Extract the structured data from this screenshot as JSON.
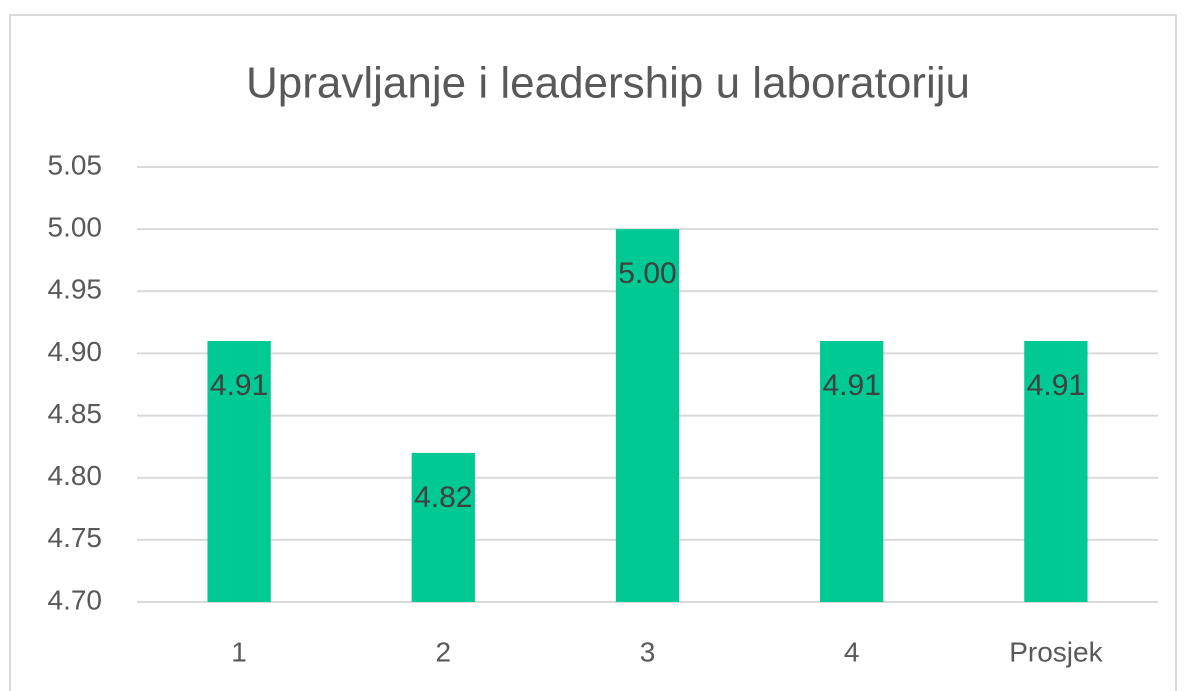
{
  "chart_data": {
    "type": "bar",
    "title": "Upravljanje i leadership u laboratoriju",
    "categories": [
      "1",
      "2",
      "3",
      "4",
      "Prosjek"
    ],
    "values": [
      4.91,
      4.82,
      5,
      4.91,
      4.91
    ],
    "value_labels": [
      "4.91",
      "4.82",
      "5.00",
      "4.91",
      "4.91"
    ],
    "color": "#00c994",
    "ylim": [
      4.7,
      5.05
    ],
    "yticks": [
      {
        "value": 4.7,
        "label": "4.70"
      },
      4.75,
      {
        "value": 4.8,
        "label": "4.80"
      },
      4.85,
      {
        "value": 4.9,
        "label": "4.90"
      },
      4.95,
      {
        "value": 5,
        "label": "5.00"
      },
      5.05
    ],
    "grid": true
  }
}
